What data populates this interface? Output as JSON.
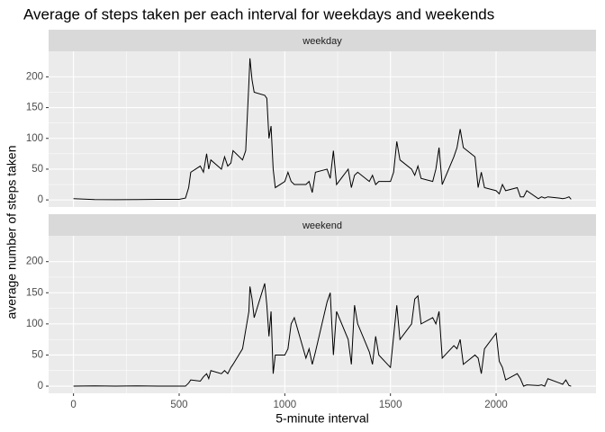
{
  "chart_data": {
    "type": "line",
    "title": "Average of steps taken per each interval for weekdays and weekends",
    "x_label": "5-minute interval",
    "y_label": "average number of steps taken",
    "xlim": [
      -117.75,
      2472.75
    ],
    "ylim": [
      -11.5,
      241.5
    ],
    "xticks": [
      0,
      500,
      1000,
      1500,
      2000
    ],
    "yticks": [
      0,
      50,
      100,
      150,
      200
    ],
    "grid": true,
    "color": "#000000",
    "x": [
      0,
      100,
      200,
      300,
      400,
      500,
      530,
      545,
      555,
      600,
      615,
      630,
      640,
      650,
      700,
      715,
      730,
      745,
      755,
      800,
      815,
      830,
      835,
      845,
      855,
      905,
      915,
      925,
      935,
      945,
      955,
      1000,
      1015,
      1030,
      1045,
      1100,
      1115,
      1130,
      1145,
      1200,
      1215,
      1230,
      1245,
      1300,
      1315,
      1330,
      1345,
      1400,
      1415,
      1430,
      1445,
      1500,
      1515,
      1530,
      1545,
      1600,
      1615,
      1630,
      1645,
      1700,
      1715,
      1730,
      1745,
      1800,
      1815,
      1830,
      1845,
      1900,
      1915,
      1930,
      1945,
      2000,
      2015,
      2030,
      2045,
      2100,
      2115,
      2130,
      2145,
      2200,
      2215,
      2230,
      2245,
      2300,
      2315,
      2330,
      2345,
      2355
    ],
    "panels": [
      {
        "label": "weekday",
        "values": [
          2,
          0.5,
          0.3,
          0.5,
          1,
          1,
          3,
          20,
          45,
          55,
          45,
          75,
          50,
          65,
          50,
          70,
          55,
          60,
          80,
          65,
          80,
          190,
          230,
          195,
          175,
          170,
          165,
          100,
          120,
          50,
          20,
          30,
          45,
          30,
          25,
          25,
          30,
          12,
          45,
          50,
          35,
          80,
          25,
          50,
          20,
          40,
          45,
          30,
          40,
          25,
          30,
          30,
          45,
          95,
          65,
          50,
          40,
          55,
          35,
          30,
          50,
          85,
          25,
          70,
          85,
          115,
          85,
          70,
          20,
          45,
          20,
          15,
          10,
          25,
          15,
          20,
          5,
          5,
          15,
          2,
          5,
          3,
          5,
          3,
          2,
          3,
          5,
          1
        ]
      },
      {
        "label": "weekend",
        "values": [
          0,
          0.5,
          0,
          0.5,
          0,
          0,
          0,
          5,
          10,
          8,
          15,
          20,
          12,
          25,
          20,
          25,
          20,
          30,
          35,
          60,
          90,
          120,
          160,
          140,
          110,
          165,
          130,
          80,
          120,
          20,
          50,
          50,
          60,
          100,
          110,
          45,
          60,
          35,
          55,
          135,
          150,
          50,
          120,
          75,
          35,
          130,
          100,
          55,
          35,
          80,
          50,
          30,
          80,
          130,
          75,
          100,
          140,
          145,
          100,
          110,
          100,
          120,
          45,
          65,
          60,
          75,
          35,
          50,
          45,
          20,
          60,
          85,
          40,
          30,
          10,
          20,
          12,
          0,
          2,
          1,
          2,
          0,
          12,
          5,
          3,
          10,
          1,
          0
        ]
      }
    ]
  }
}
